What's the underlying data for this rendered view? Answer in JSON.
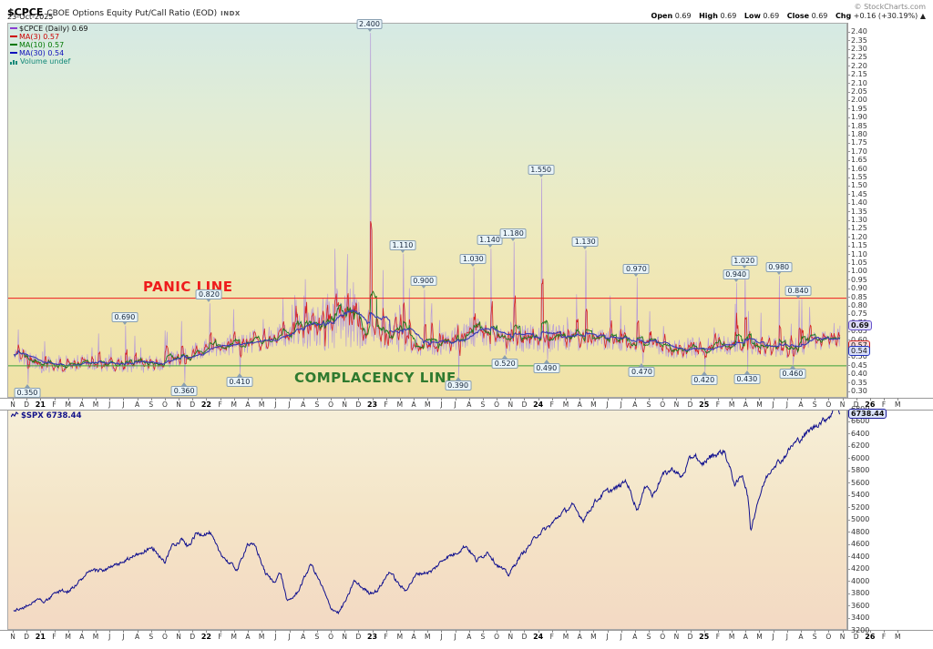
{
  "header": {
    "symbol": "$CPCE",
    "title": "CBOE Options Equity Put/Call Ratio (EOD)",
    "exchange": "INDX",
    "date": "23-Oct-2025",
    "copyright": "© StockCharts.com",
    "ohlc": {
      "open_label": "Open",
      "open": "0.69",
      "high_label": "High",
      "high": "0.69",
      "low_label": "Low",
      "low": "0.69",
      "close_label": "Close",
      "close": "0.69",
      "chg_label": "Chg",
      "chg": "+0.16 (+30.19%)",
      "chg_arrow": "▲"
    }
  },
  "legend": {
    "items": [
      {
        "label": "$CPCE (Daily) 0.69",
        "color": "#111111",
        "swatch": "#8a3fd0",
        "icon": "dash"
      },
      {
        "label": "MA(3) 0.57",
        "color": "#cc0000",
        "swatch": "#cc0000",
        "icon": "dash"
      },
      {
        "label": "MA(10) 0.57",
        "color": "#007700",
        "swatch": "#007700",
        "icon": "dash"
      },
      {
        "label": "MA(30) 0.54",
        "color": "#1111bb",
        "swatch": "#1111bb",
        "icon": "dash"
      },
      {
        "label": "Volume undef",
        "color": "#118877",
        "swatch": "#118877",
        "icon": "bars"
      }
    ]
  },
  "spx_legend": "$SPX 6738.44",
  "chart_data": [
    {
      "type": "line",
      "panel": "cpce",
      "title": "$CPCE CBOE Options Equity Put/Call Ratio (EOD) INDX - Daily",
      "as_of": "23-Oct-2025",
      "ylim": [
        0.3,
        2.4
      ],
      "ytick_step": 0.05,
      "x_range": "Nov-2020 to Mar-2026 (data through 23-Oct-2025)",
      "x_axis": {
        "months": [
          "N",
          "D",
          "21",
          "F",
          "M",
          "A",
          "M",
          "J",
          "J",
          "A",
          "S",
          "O",
          "N",
          "D",
          "22",
          "F",
          "M",
          "A",
          "M",
          "J",
          "J",
          "A",
          "S",
          "O",
          "N",
          "D",
          "23",
          "F",
          "M",
          "A",
          "M",
          "J",
          "J",
          "A",
          "S",
          "O",
          "N",
          "D",
          "24",
          "F",
          "M",
          "A",
          "M",
          "J",
          "J",
          "A",
          "S",
          "O",
          "N",
          "D",
          "25",
          "F",
          "M",
          "A",
          "M",
          "J",
          "J",
          "A",
          "S",
          "O",
          "N",
          "D",
          "26",
          "F",
          "M"
        ],
        "bold_indices": [
          2,
          14,
          26,
          38,
          50,
          62
        ]
      },
      "last_values": {
        "close": 0.69,
        "ma3": 0.57,
        "ma10": 0.57,
        "ma30": 0.54
      },
      "series": [
        {
          "name": "$CPCE (Daily)",
          "color": "#b79cd8",
          "width": 0.7,
          "baseline_anchors": [
            [
              0,
              0.52
            ],
            [
              2,
              0.46
            ],
            [
              6,
              0.47
            ],
            [
              10,
              0.46
            ],
            [
              12,
              0.5
            ],
            [
              14,
              0.56
            ],
            [
              18,
              0.6
            ],
            [
              22,
              0.68
            ],
            [
              24,
              0.74
            ],
            [
              26,
              0.66
            ],
            [
              30,
              0.56
            ],
            [
              33,
              0.64
            ],
            [
              36,
              0.62
            ],
            [
              40,
              0.61
            ],
            [
              44,
              0.6
            ],
            [
              48,
              0.55
            ],
            [
              52,
              0.58
            ],
            [
              56,
              0.56
            ],
            [
              59.75,
              0.62
            ]
          ],
          "volatility_anchors": [
            [
              0,
              0.07
            ],
            [
              12,
              0.07
            ],
            [
              20,
              0.1
            ],
            [
              22,
              0.2
            ],
            [
              24,
              0.26
            ],
            [
              26,
              0.14
            ],
            [
              30,
              0.08
            ],
            [
              33,
              0.13
            ],
            [
              38,
              0.12
            ],
            [
              42,
              0.09
            ],
            [
              46,
              0.08
            ],
            [
              50,
              0.08
            ],
            [
              54,
              0.09
            ],
            [
              59.75,
              0.08
            ]
          ]
        },
        {
          "name": "MA(3)",
          "color": "#d62323",
          "width": 0.8,
          "window": 3
        },
        {
          "name": "MA(10)",
          "color": "#1e7a1e",
          "width": 0.9,
          "window": 10
        },
        {
          "name": "MA(30)",
          "color": "#3c3cb4",
          "width": 1.1,
          "window": 30
        }
      ],
      "hlines": [
        {
          "label": "PANIC LINE",
          "value": 0.85,
          "color": "#ee1c1c"
        },
        {
          "label": "COMPLACENCY LINE",
          "value": 0.455,
          "color": "#3aa03a"
        }
      ],
      "annotations": [
        {
          "label": "0.350",
          "value": 0.35,
          "m": 1.05,
          "side": "below"
        },
        {
          "label": "0.690",
          "value": 0.69,
          "m": 8.1,
          "side": "above"
        },
        {
          "label": "0.360",
          "value": 0.36,
          "m": 12.4,
          "side": "below"
        },
        {
          "label": "0.820",
          "value": 0.82,
          "m": 14.2,
          "side": "above"
        },
        {
          "label": "0.410",
          "value": 0.41,
          "m": 16.4,
          "side": "below"
        },
        {
          "label": "2.400",
          "value": 2.4,
          "m": 25.8,
          "side": "above"
        },
        {
          "label": "1.110",
          "value": 1.11,
          "m": 28.2,
          "side": "above"
        },
        {
          "label": "0.900",
          "value": 0.9,
          "m": 29.7,
          "side": "above"
        },
        {
          "label": "0.390",
          "value": 0.39,
          "m": 32.2,
          "side": "below"
        },
        {
          "label": "1.030",
          "value": 1.03,
          "m": 33.3,
          "side": "above"
        },
        {
          "label": "1.140",
          "value": 1.14,
          "m": 34.5,
          "side": "above"
        },
        {
          "label": "0.520",
          "value": 0.52,
          "m": 35.6,
          "side": "below"
        },
        {
          "label": "1.180",
          "value": 1.18,
          "m": 36.2,
          "side": "above"
        },
        {
          "label": "1.550",
          "value": 1.55,
          "m": 38.2,
          "side": "above"
        },
        {
          "label": "0.490",
          "value": 0.49,
          "m": 38.6,
          "side": "below"
        },
        {
          "label": "1.130",
          "value": 1.13,
          "m": 41.4,
          "side": "above"
        },
        {
          "label": "0.970",
          "value": 0.97,
          "m": 45.1,
          "side": "above"
        },
        {
          "label": "0.470",
          "value": 0.47,
          "m": 45.5,
          "side": "below"
        },
        {
          "label": "0.420",
          "value": 0.42,
          "m": 50.0,
          "side": "below"
        },
        {
          "label": "0.940",
          "value": 0.94,
          "m": 52.3,
          "side": "above"
        },
        {
          "label": "1.020",
          "value": 1.02,
          "m": 52.9,
          "side": "above"
        },
        {
          "label": "0.430",
          "value": 0.43,
          "m": 53.1,
          "side": "below"
        },
        {
          "label": "0.980",
          "value": 0.98,
          "m": 55.4,
          "side": "above"
        },
        {
          "label": "0.460",
          "value": 0.46,
          "m": 56.4,
          "side": "below"
        },
        {
          "label": "0.840",
          "value": 0.84,
          "m": 56.8,
          "side": "above"
        }
      ],
      "axis_badges": [
        {
          "text": "0.69",
          "value": 0.69,
          "border": "#6a55cc",
          "bg": "#dedcf8",
          "bold": true
        },
        {
          "text": "0.57",
          "value": 0.57,
          "border": "#cc2222",
          "bg": "#f8dada",
          "bold": false
        },
        {
          "text": "0.54",
          "value": 0.54,
          "border": "#2233bb",
          "bg": "#d8defa",
          "bold": false
        }
      ],
      "bg_gradient": [
        "#d5eae4",
        "#e2ecd4",
        "#ecebc2",
        "#f1e5b0",
        "#f0e2a6"
      ]
    },
    {
      "type": "line",
      "panel": "spx",
      "name": "$SPX",
      "last": 6738.44,
      "color": "#10108e",
      "ylim": [
        3200,
        6800
      ],
      "ytick_step": 200,
      "anchors": [
        [
          0,
          3540
        ],
        [
          0.5,
          3560
        ],
        [
          1,
          3620
        ],
        [
          1.5,
          3700
        ],
        [
          2,
          3720
        ],
        [
          2.3,
          3680
        ],
        [
          3,
          3810
        ],
        [
          3.5,
          3880
        ],
        [
          3.8,
          3820
        ],
        [
          4.5,
          3960
        ],
        [
          5.5,
          4170
        ],
        [
          6.5,
          4200
        ],
        [
          7.5,
          4280
        ],
        [
          8.5,
          4400
        ],
        [
          9.5,
          4510
        ],
        [
          10.2,
          4540
        ],
        [
          10.9,
          4310
        ],
        [
          11.5,
          4620
        ],
        [
          12.2,
          4700
        ],
        [
          12.6,
          4570
        ],
        [
          13.2,
          4790
        ],
        [
          14.2,
          4800
        ],
        [
          14.8,
          4520
        ],
        [
          15.5,
          4330
        ],
        [
          16.2,
          4200
        ],
        [
          16.9,
          4630
        ],
        [
          17.5,
          4580
        ],
        [
          18.2,
          4150
        ],
        [
          18.8,
          4000
        ],
        [
          19.3,
          4160
        ],
        [
          19.8,
          3670
        ],
        [
          20.5,
          3820
        ],
        [
          21.5,
          4300
        ],
        [
          22.3,
          3930
        ],
        [
          22.9,
          3590
        ],
        [
          23.5,
          3500
        ],
        [
          24.2,
          3770
        ],
        [
          24.6,
          4020
        ],
        [
          25.1,
          3930
        ],
        [
          25.7,
          3830
        ],
        [
          26.3,
          3860
        ],
        [
          27.2,
          4180
        ],
        [
          27.8,
          3980
        ],
        [
          28.3,
          3860
        ],
        [
          29.2,
          4140
        ],
        [
          30.2,
          4170
        ],
        [
          31.2,
          4400
        ],
        [
          31.9,
          4460
        ],
        [
          32.7,
          4600
        ],
        [
          33.5,
          4350
        ],
        [
          34.3,
          4500
        ],
        [
          34.9,
          4300
        ],
        [
          35.8,
          4120
        ],
        [
          36.5,
          4380
        ],
        [
          37.2,
          4570
        ],
        [
          37.9,
          4780
        ],
        [
          38.8,
          4920
        ],
        [
          39.5,
          5100
        ],
        [
          40.4,
          5250
        ],
        [
          41.2,
          5020
        ],
        [
          42,
          5300
        ],
        [
          42.8,
          5470
        ],
        [
          43.6,
          5530
        ],
        [
          44.3,
          5660
        ],
        [
          45.1,
          5180
        ],
        [
          45.8,
          5620
        ],
        [
          46.2,
          5400
        ],
        [
          46.9,
          5740
        ],
        [
          47.7,
          5850
        ],
        [
          48.3,
          5700
        ],
        [
          48.9,
          6000
        ],
        [
          49.3,
          6090
        ],
        [
          49.7,
          5880
        ],
        [
          50.3,
          6040
        ],
        [
          51.4,
          6140
        ],
        [
          52.2,
          5570
        ],
        [
          52.7,
          5770
        ],
        [
          53.1,
          5400
        ],
        [
          53.3,
          4840
        ],
        [
          53.8,
          5310
        ],
        [
          54.4,
          5690
        ],
        [
          55,
          5920
        ],
        [
          55.6,
          6000
        ],
        [
          56.3,
          6230
        ],
        [
          56.9,
          6340
        ],
        [
          57.5,
          6460
        ],
        [
          58.2,
          6590
        ],
        [
          58.7,
          6660
        ],
        [
          59.2,
          6750
        ],
        [
          59.45,
          6890
        ],
        [
          59.6,
          6850
        ],
        [
          59.75,
          6738.44
        ]
      ],
      "axis_badges": [
        {
          "text": "6738.44",
          "value": 6738.44,
          "border": "#1a1a99",
          "bg": "#dce4fa",
          "bold": true
        }
      ],
      "bg_gradient": [
        "#f6efd8",
        "#f4e4c6",
        "#f3d9c4"
      ]
    }
  ]
}
